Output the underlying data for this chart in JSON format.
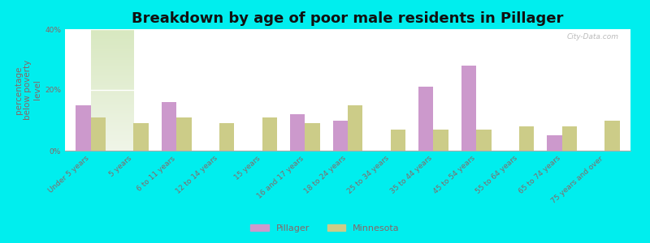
{
  "title": "Breakdown by age of poor male residents in Pillager",
  "ylabel": "percentage\nbelow poverty\nlevel",
  "categories": [
    "Under 5 years",
    "5 years",
    "6 to 11 years",
    "12 to 14 years",
    "15 years",
    "16 and 17 years",
    "18 to 24 years",
    "25 to 34 years",
    "35 to 44 years",
    "45 to 54 years",
    "55 to 64 years",
    "65 to 74 years",
    "75 years and over"
  ],
  "pillager_values": [
    15,
    0,
    16,
    0,
    0,
    12,
    10,
    0,
    21,
    28,
    0,
    5,
    0
  ],
  "minnesota_values": [
    11,
    9,
    11,
    9,
    11,
    9,
    15,
    7,
    7,
    7,
    8,
    8,
    10
  ],
  "pillager_color": "#cc99cc",
  "minnesota_color": "#cccc88",
  "background_color": "#00eeee",
  "ylim": [
    0,
    40
  ],
  "yticks": [
    0,
    20,
    40
  ],
  "ytick_labels": [
    "0%",
    "20%",
    "40%"
  ],
  "title_fontsize": 13,
  "axis_label_fontsize": 7.5,
  "tick_label_fontsize": 6.5,
  "tick_color": "#886666",
  "watermark": "City-Data.com",
  "bar_width": 0.35,
  "plot_bg_color": "#e8f0dc"
}
